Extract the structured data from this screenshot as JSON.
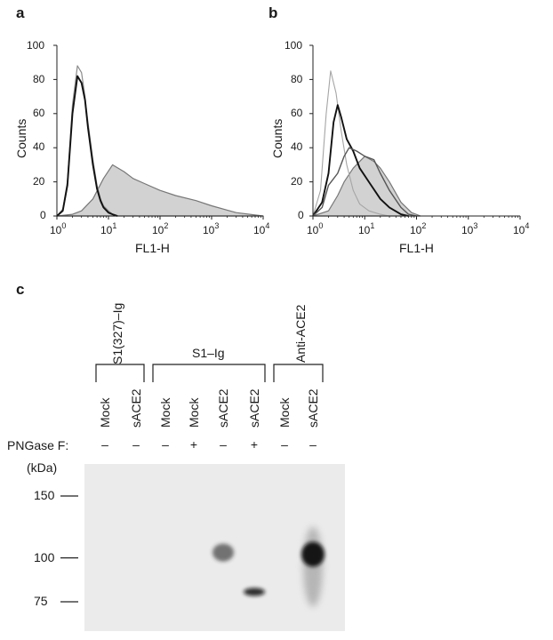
{
  "panels": {
    "a": {
      "letter": "a",
      "ylabel": "Counts",
      "xlabel": "FL1-H"
    },
    "b": {
      "letter": "b",
      "ylabel": "Counts",
      "xlabel": "FL1-H"
    },
    "c": {
      "letter": "c"
    }
  },
  "chart_data": [
    {
      "type": "area",
      "panel": "a",
      "xscale": "log",
      "xlim": [
        1,
        10000
      ],
      "ylim": [
        0,
        100
      ],
      "xticks": [
        1,
        10,
        100,
        1000,
        10000
      ],
      "yticks": [
        0,
        20,
        40,
        60,
        80,
        100
      ],
      "xlabel": "FL1-H",
      "ylabel": "Counts",
      "series": [
        {
          "style": "thin-grey-line",
          "x": [
            1,
            1.3,
            1.6,
            2.0,
            2.5,
            3.0,
            3.5,
            4.0,
            5.0,
            6.0,
            7.0,
            8.0,
            10,
            12,
            15
          ],
          "y": [
            0,
            4,
            20,
            65,
            88,
            84,
            70,
            55,
            33,
            18,
            10,
            6,
            3,
            1,
            0
          ]
        },
        {
          "style": "thick-black-line",
          "x": [
            1,
            1.3,
            1.6,
            2.0,
            2.5,
            3.0,
            3.5,
            4.0,
            5.0,
            6.0,
            7.0,
            8.0,
            10,
            12,
            15
          ],
          "y": [
            0,
            3,
            18,
            60,
            82,
            78,
            68,
            52,
            30,
            16,
            9,
            5,
            2,
            1,
            0
          ]
        },
        {
          "style": "grey-filled",
          "x": [
            1,
            2,
            3,
            5,
            8,
            12,
            20,
            30,
            50,
            100,
            200,
            500,
            1000,
            3000,
            10000
          ],
          "y": [
            0,
            1,
            3,
            10,
            22,
            30,
            26,
            22,
            19,
            15,
            12,
            9,
            6,
            2,
            0
          ]
        }
      ]
    },
    {
      "type": "area",
      "panel": "b",
      "xscale": "log",
      "xlim": [
        1,
        10000
      ],
      "ylim": [
        0,
        100
      ],
      "xticks": [
        1,
        10,
        100,
        1000,
        10000
      ],
      "yticks": [
        0,
        20,
        40,
        60,
        80,
        100
      ],
      "xlabel": "FL1-H",
      "ylabel": "Counts",
      "series": [
        {
          "style": "light-grey-line",
          "x": [
            1,
            1.4,
            1.8,
            2.2,
            2.8,
            3.5,
            4.5,
            6.0,
            8.0,
            12,
            20,
            30
          ],
          "y": [
            0,
            15,
            60,
            85,
            72,
            50,
            30,
            15,
            7,
            3,
            1,
            0
          ]
        },
        {
          "style": "thick-black-line",
          "x": [
            1,
            1.5,
            2.0,
            2.5,
            3.0,
            3.5,
            4.5,
            6,
            8,
            12,
            20,
            30,
            50,
            70
          ],
          "y": [
            0,
            8,
            25,
            55,
            65,
            58,
            45,
            38,
            28,
            20,
            10,
            5,
            1,
            0
          ]
        },
        {
          "style": "dark-grey-line",
          "x": [
            1,
            1.5,
            2,
            3,
            4,
            5,
            7,
            10,
            15,
            20,
            30,
            50,
            70,
            100
          ],
          "y": [
            0,
            5,
            18,
            25,
            35,
            40,
            38,
            35,
            33,
            25,
            15,
            5,
            1,
            0
          ]
        },
        {
          "style": "grey-filled",
          "x": [
            1,
            2,
            3,
            4,
            6,
            8,
            10,
            15,
            20,
            30,
            50,
            80,
            120
          ],
          "y": [
            0,
            3,
            12,
            20,
            28,
            32,
            35,
            32,
            28,
            20,
            8,
            2,
            0
          ]
        }
      ]
    }
  ],
  "western_blot": {
    "group_labels": {
      "s1_327": "S1(327)–Ig",
      "s1": "S1–Ig",
      "anti_ace2": "Anti-ACE2"
    },
    "lanes": [
      "Mock",
      "sACE2",
      "Mock",
      "Mock",
      "sACE2",
      "sACE2",
      "Mock",
      "sACE2"
    ],
    "pngase_label": "PNGase F:",
    "pngase": [
      "–",
      "–",
      "–",
      "+",
      "–",
      "+",
      "–",
      "–"
    ],
    "mw_unit": "(kDa)",
    "mw_markers": [
      "150",
      "100",
      "75"
    ],
    "bands": [
      {
        "lane": 5,
        "kda": 100,
        "intensity": 0.6
      },
      {
        "lane": 6,
        "kda": 80,
        "intensity": 0.85
      },
      {
        "lane": 8,
        "kda": 100,
        "intensity": 0.95
      }
    ]
  }
}
